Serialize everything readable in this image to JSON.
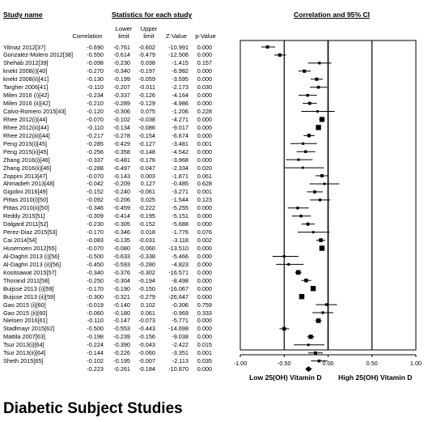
{
  "headers": {
    "study_name": "Study name",
    "stats_for_each_study": "Statistics for each study",
    "ci_title": "Correlation and 95% CI"
  },
  "columns": {
    "correlation": "Correlation",
    "lower_limit": [
      "Lower",
      "limit"
    ],
    "upper_limit": [
      "Upper",
      "limit"
    ],
    "z_value": "Z-Value",
    "p_value": "p-Value"
  },
  "caption": "Diabetic Subject Studies",
  "legend": {
    "left": "Low 25(OH) Vitamin D",
    "right": "High 25(OH) Vitamin D"
  },
  "chart_data": {
    "type": "forest",
    "xlim": [
      -1.0,
      1.0
    ],
    "ticks": [
      "-1.00",
      "-0.50",
      "0.00",
      "0.50",
      "1.00"
    ],
    "tick_values": [
      -1.0,
      -0.5,
      0.0,
      0.5,
      1.0
    ],
    "studies": [
      {
        "name": "Yilmaz 2012[37]",
        "r": "-0.690",
        "lower": "-0.761",
        "upper": "-0.602",
        "z": "-10.991",
        "p": "0.000"
      },
      {
        "name": "Gonzalez-Molero 2012[38]",
        "r": "-0.550",
        "lower": "-0.614",
        "upper": "-0.479",
        "z": "-12.506",
        "p": "0.000"
      },
      {
        "name": "Shehab 2012[39]",
        "r": "-0.098",
        "lower": "-0.230",
        "upper": "0.038",
        "z": "-1.415",
        "p": "0.157"
      },
      {
        "name": "knekt 2008(i)[40]",
        "r": "-0.270",
        "lower": "-0.340",
        "upper": "-0.197",
        "z": "-6.982",
        "p": "0.000"
      },
      {
        "name": "knekt 2008(ii)[41]",
        "r": "-0.130",
        "lower": "-0.199",
        "upper": "-0.059",
        "z": "-3.595",
        "p": "0.000"
      },
      {
        "name": "Targher 2006[41]",
        "r": "-0.110",
        "lower": "-0.207",
        "upper": "-0.011",
        "z": "-2.173",
        "p": "0.030"
      },
      {
        "name": "Milen 2016 (i)[42]",
        "r": "-0.234",
        "lower": "-0.337",
        "upper": "-0.126",
        "z": "-4.164",
        "p": "0.000"
      },
      {
        "name": "Milen 2016 (ii)[42]",
        "r": "-0.210",
        "lower": "-0.289",
        "upper": "-0.129",
        "z": "-4.986",
        "p": "0.000"
      },
      {
        "name": "Calvo-Romero 2015[43]",
        "r": "-0.120",
        "lower": "-0.306",
        "upper": "0.075",
        "z": "-1.206",
        "p": "0.228"
      },
      {
        "name": "Rhee 2012(i)[44]",
        "r": "-0.070",
        "lower": "-0.102",
        "upper": "-0.038",
        "z": "-4.271",
        "p": "0.000"
      },
      {
        "name": "Rhee 2012(ii)[44]",
        "r": "-0.110",
        "lower": "-0.134",
        "upper": "-0.086",
        "z": "-9.017",
        "p": "0.000"
      },
      {
        "name": "Rhee 2012(iii)[44]",
        "r": "-0.217",
        "lower": "-0.278",
        "upper": "-0.154",
        "z": "-6.674",
        "p": "0.000"
      },
      {
        "name": "Peng 2015(i)[45]",
        "r": "-0.285",
        "lower": "-0.429",
        "upper": "-0.127",
        "z": "-3.481",
        "p": "0.001"
      },
      {
        "name": "Peng 2015(ii)[45]",
        "r": "-0.256",
        "lower": "-0.358",
        "upper": "-0.148",
        "z": "-4.542",
        "p": "0.000"
      },
      {
        "name": "Zhang 2016(i)[46]",
        "r": "-0.337",
        "lower": "-0.481",
        "upper": "-0.176",
        "z": "-3.968",
        "p": "0.000"
      },
      {
        "name": "Zhang 2016(ii)[46]",
        "r": "-0.288",
        "lower": "-0.497",
        "upper": "-0.047",
        "z": "-2.334",
        "p": "0.020"
      },
      {
        "name": "Zoppini 2013[47]",
        "r": "-0.070",
        "lower": "-0.143",
        "upper": "0.003",
        "z": "-1.871",
        "p": "0.061"
      },
      {
        "name": "Ahmadieh 2013[48]",
        "r": "-0.042",
        "lower": "-0.209",
        "upper": "0.127",
        "z": "-0.485",
        "p": "0.628"
      },
      {
        "name": "Gigolini 2016[49]",
        "r": "-0.152",
        "lower": "-0.240",
        "upper": "-0.061",
        "z": "-3.271",
        "p": "0.001"
      },
      {
        "name": "Pittas 2010(i)[50]",
        "r": "-0.092",
        "lower": "-0.206",
        "upper": "0.025",
        "z": "-1.544",
        "p": "0.123"
      },
      {
        "name": "Pittas 2010(ii)[50]",
        "r": "-0.346",
        "lower": "-0.459",
        "upper": "-0.222",
        "z": "-5.255",
        "p": "0.000"
      },
      {
        "name": "Reddy 2015[51]",
        "r": "-0.309",
        "lower": "-0.414",
        "upper": "-0.195",
        "z": "-5.151",
        "p": "0.000"
      },
      {
        "name": "Dalgard 2011[52]",
        "r": "-0.230",
        "lower": "-0.305",
        "upper": "-0.152",
        "z": "-5.688",
        "p": "0.000"
      },
      {
        "name": "Perez-Diaz 2015[53]",
        "r": "-0.170",
        "lower": "-0.346",
        "upper": "0.018",
        "z": "-1.776",
        "p": "0.076"
      },
      {
        "name": "Cai 2014[54]",
        "r": "-0.083",
        "lower": "-0.135",
        "upper": "-0.031",
        "z": "-3.118",
        "p": "0.002"
      },
      {
        "name": "Husemoen 2012[55]",
        "r": "-0.070",
        "lower": "-0.080",
        "upper": "-0.060",
        "z": "-13.510",
        "p": "0.000"
      },
      {
        "name": "Al-Daghri 2013 (i)[56]",
        "r": "-0.500",
        "lower": "-0.633",
        "upper": "-0.338",
        "z": "-5.466",
        "p": "0.000"
      },
      {
        "name": "Al-Daghri 2013 (ii)[56]",
        "r": "-0.450",
        "lower": "-0.593",
        "upper": "-0.280",
        "z": "-4.823",
        "p": "0.000"
      },
      {
        "name": "Kositsawat 2015[57]",
        "r": "-0.340",
        "lower": "-0.376",
        "upper": "-0.302",
        "z": "-16.571",
        "p": "0.000"
      },
      {
        "name": "Thorand 2011[58]",
        "r": "-0.250",
        "lower": "-0.304",
        "upper": "-0.194",
        "z": "-8.498",
        "p": "0.000"
      },
      {
        "name": "Buijsse 2013 (i)[59]",
        "r": "-0.170",
        "lower": "-0.190",
        "upper": "-0.150",
        "z": "-16.067",
        "p": "0.000"
      },
      {
        "name": "Buijsse 2013 (ii)[59]",
        "r": "-0.300",
        "lower": "-0.321",
        "upper": "-0.279",
        "z": "-26.647",
        "p": "0.000"
      },
      {
        "name": "Gao 2015 (i)[60]",
        "r": "-0.019",
        "lower": "-0.140",
        "upper": "0.102",
        "z": "-0.306",
        "p": "0.759"
      },
      {
        "name": "Gao 2015 (ii)[60]",
        "r": "-0.060",
        "lower": "-0.180",
        "upper": "0.061",
        "z": "-0.969",
        "p": "0.333"
      },
      {
        "name": "Nielsen 2016[61]",
        "r": "-0.110",
        "lower": "-0.147",
        "upper": "-0.073",
        "z": "-5.771",
        "p": "0.000"
      },
      {
        "name": "Stadlmayr 2015[62]",
        "r": "-0.500",
        "lower": "-0.553",
        "upper": "-0.443",
        "z": "-14.698",
        "p": "0.000"
      },
      {
        "name": "Mattila 2007[63]",
        "r": "-0.198",
        "lower": "-0.239",
        "upper": "-0.156",
        "z": "-9.038",
        "p": "0.000"
      },
      {
        "name": "Tsur 2013(i)[64]",
        "r": "-0.224",
        "lower": "-0.390",
        "upper": "-0.043",
        "z": "-2.422",
        "p": "0.015"
      },
      {
        "name": "Tsur 2013(ii)[64]",
        "r": "-0.144",
        "lower": "-0.226",
        "upper": "-0.060",
        "z": "-3.351",
        "p": "0.001"
      },
      {
        "name": "Sheth 2015[65]",
        "r": "-0.102",
        "lower": "-0.195",
        "upper": "-0.007",
        "z": "-2.113",
        "p": "0.035"
      }
    ],
    "summary": {
      "r": "-0.223",
      "lower": "-0.261",
      "upper": "-0.184",
      "z": "-10.870",
      "p": "0.000"
    }
  }
}
